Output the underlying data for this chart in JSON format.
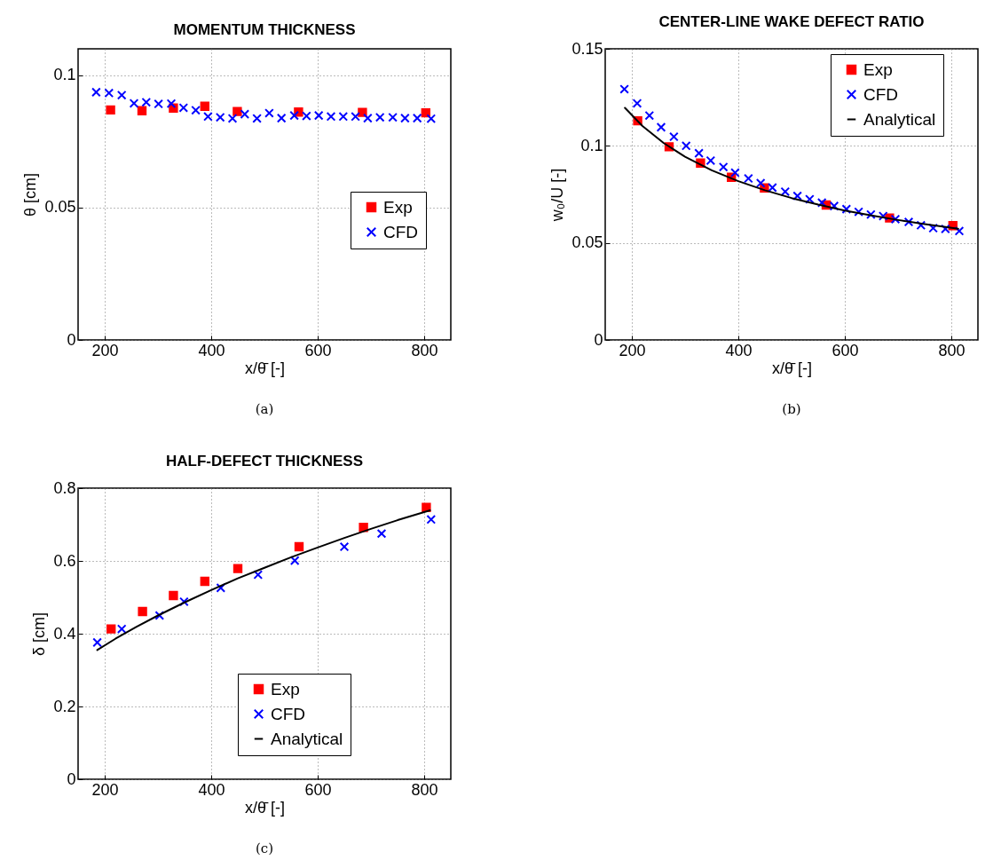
{
  "chart_data": [
    {
      "type": "scatter",
      "title": "MOMENTUM THICKNESS",
      "xlabel": "x/θ̄  [-]",
      "ylabel": "θ [cm]",
      "xlim": [
        150,
        850
      ],
      "xticks": [
        200,
        400,
        600,
        800
      ],
      "ylim": [
        0,
        0.11
      ],
      "yticks": [
        0,
        0.05,
        0.1
      ],
      "grid": true,
      "legend": "right",
      "annotations": [
        "(a)"
      ],
      "series": [
        {
          "name": "Exp",
          "color": "#ff0000",
          "marker": "square",
          "x": [
            211,
            270,
            329,
            388,
            449,
            564,
            684,
            803
          ],
          "values": [
            0.0869,
            0.0866,
            0.0876,
            0.0883,
            0.0863,
            0.0861,
            0.086,
            0.0858
          ]
        },
        {
          "name": "CFD",
          "color": "#0000ff",
          "marker": "cross",
          "x": [
            184,
            208,
            232,
            255,
            278,
            301,
            325,
            348,
            371,
            394,
            417,
            440,
            463,
            486,
            509,
            532,
            556,
            579,
            602,
            625,
            648,
            671,
            694,
            717,
            741,
            764,
            787,
            813
          ],
          "values": [
            0.0936,
            0.0933,
            0.0925,
            0.0894,
            0.0898,
            0.0892,
            0.0893,
            0.0877,
            0.0868,
            0.0844,
            0.0841,
            0.0837,
            0.0853,
            0.0837,
            0.0857,
            0.0838,
            0.0848,
            0.0846,
            0.0848,
            0.0844,
            0.0844,
            0.0844,
            0.0838,
            0.0841,
            0.0841,
            0.0838,
            0.0838,
            0.0836
          ]
        }
      ]
    },
    {
      "type": "scatter",
      "title": "CENTER-LINE WAKE DEFECT RATIO",
      "xlabel": "x/θ̄  [-]",
      "ylabel": "w₀/U  [-]",
      "xlim": [
        150,
        850
      ],
      "xticks": [
        200,
        400,
        600,
        800
      ],
      "ylim": [
        0,
        0.15
      ],
      "yticks": [
        0,
        0.05,
        0.1,
        0.15
      ],
      "grid": true,
      "legend": "top right",
      "annotations": [
        "(b)"
      ],
      "series": [
        {
          "name": "Exp",
          "color": "#ff0000",
          "marker": "square",
          "x": [
            211,
            270,
            329,
            387,
            449,
            565,
            684,
            803
          ],
          "values": [
            0.1129,
            0.0995,
            0.0911,
            0.0838,
            0.0783,
            0.0695,
            0.0628,
            0.0589
          ]
        },
        {
          "name": "CFD",
          "color": "#0000ff",
          "marker": "cross",
          "x": [
            186,
            210,
            233,
            255,
            279,
            302,
            326,
            348,
            372,
            394,
            419,
            442,
            464,
            488,
            511,
            534,
            557,
            580,
            603,
            626,
            649,
            672,
            695,
            720,
            743,
            766,
            789,
            815
          ],
          "values": [
            0.1292,
            0.1219,
            0.1156,
            0.1096,
            0.1047,
            0.1,
            0.0962,
            0.0924,
            0.0891,
            0.0862,
            0.0832,
            0.0808,
            0.0785,
            0.0764,
            0.0742,
            0.0725,
            0.0707,
            0.069,
            0.0674,
            0.066,
            0.0646,
            0.0638,
            0.0622,
            0.0608,
            0.0591,
            0.0576,
            0.0572,
            0.0561
          ]
        },
        {
          "name": "Analytical",
          "type": "line",
          "color": "#000000",
          "x": [
            187,
            220,
            260,
            300,
            350,
            400,
            450,
            500,
            550,
            600,
            650,
            700,
            750,
            813
          ],
          "values": [
            0.1196,
            0.1102,
            0.1014,
            0.0944,
            0.0874,
            0.0818,
            0.0771,
            0.0731,
            0.0697,
            0.0667,
            0.0641,
            0.0618,
            0.0597,
            0.0573
          ]
        }
      ]
    },
    {
      "type": "scatter",
      "title": "HALF-DEFECT THICKNESS",
      "xlabel": "x/θ̄  [-]",
      "ylabel": "δ [cm]",
      "xlim": [
        150,
        850
      ],
      "xticks": [
        200,
        400,
        600,
        800
      ],
      "ylim": [
        0,
        0.8
      ],
      "yticks": [
        0,
        0.2,
        0.4,
        0.6,
        0.8
      ],
      "grid": true,
      "legend": "bottom",
      "annotations": [
        "(c)"
      ],
      "series": [
        {
          "name": "Exp",
          "color": "#ff0000",
          "marker": "square",
          "x": [
            212,
            271,
            329,
            388,
            450,
            565,
            686,
            804
          ],
          "values": [
            0.413,
            0.461,
            0.505,
            0.544,
            0.579,
            0.639,
            0.692,
            0.747
          ]
        },
        {
          "name": "CFD",
          "color": "#0000ff",
          "marker": "cross",
          "x": [
            186,
            232,
            303,
            349,
            418,
            488,
            557,
            650,
            720,
            813
          ],
          "values": [
            0.376,
            0.413,
            0.45,
            0.488,
            0.526,
            0.562,
            0.601,
            0.639,
            0.675,
            0.714
          ]
        },
        {
          "name": "Analytical",
          "type": "line",
          "color": "#000000",
          "x": [
            186,
            220,
            260,
            300,
            350,
            400,
            450,
            500,
            550,
            600,
            650,
            700,
            750,
            811
          ],
          "values": [
            0.355,
            0.386,
            0.419,
            0.45,
            0.486,
            0.52,
            0.552,
            0.581,
            0.61,
            0.637,
            0.663,
            0.688,
            0.712,
            0.739
          ]
        }
      ]
    }
  ]
}
